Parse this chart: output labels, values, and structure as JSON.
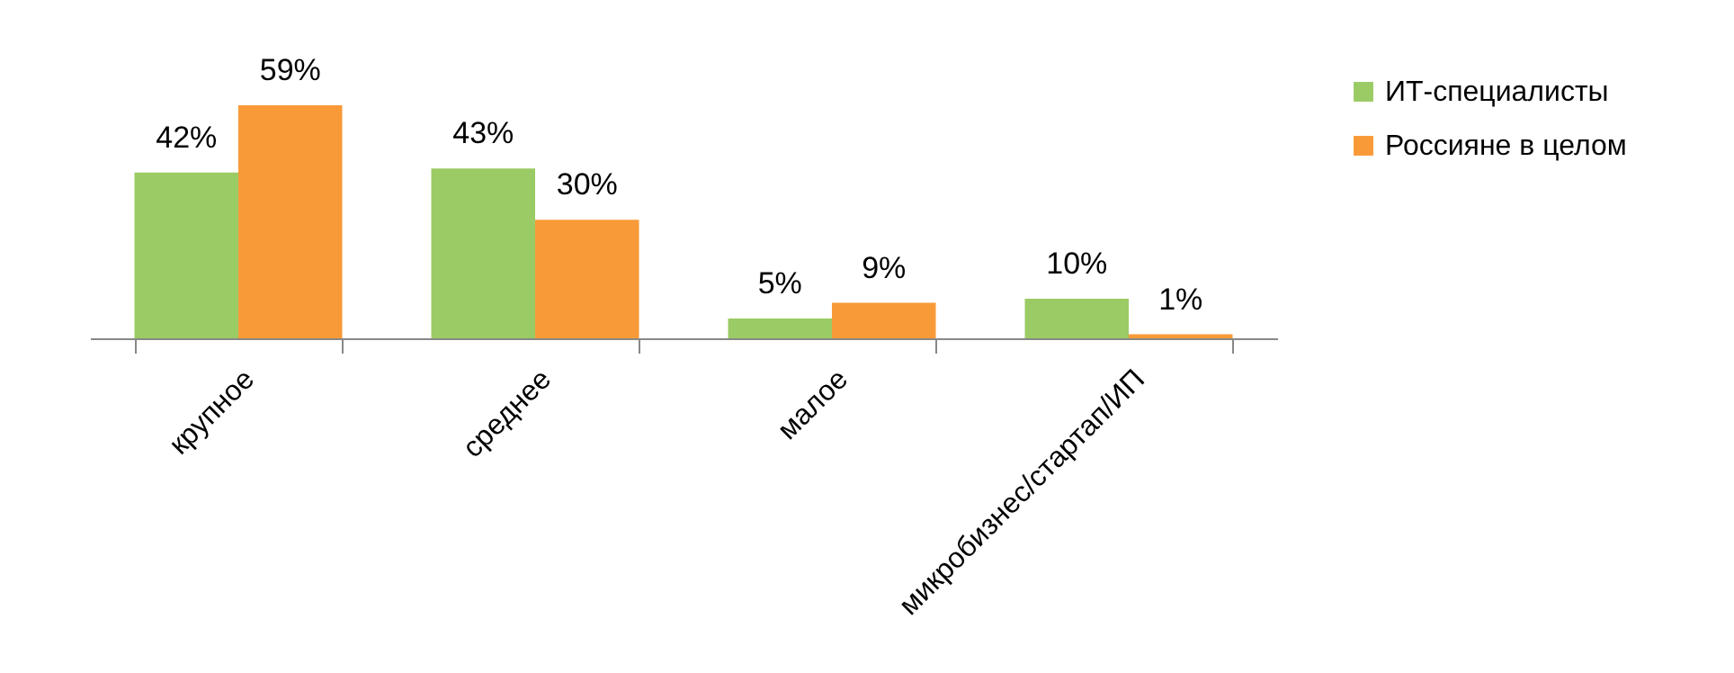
{
  "chart_data": {
    "type": "bar",
    "categories": [
      "крупное",
      "среднее",
      "малое",
      "микробизнес/стартап/ИП"
    ],
    "series": [
      {
        "name": "ИТ-специалисты",
        "color": "#9bcb64",
        "values": [
          42,
          43,
          5,
          10
        ],
        "value_labels": [
          "42%",
          "43%",
          "5%",
          "10%"
        ]
      },
      {
        "name": "Россияне в целом",
        "color": "#f99a38",
        "values": [
          59,
          30,
          9,
          1
        ],
        "value_labels": [
          "59%",
          "30%",
          "9%",
          "1%"
        ]
      }
    ],
    "legend": "right",
    "grid": false,
    "tick_labels": "x"
  }
}
